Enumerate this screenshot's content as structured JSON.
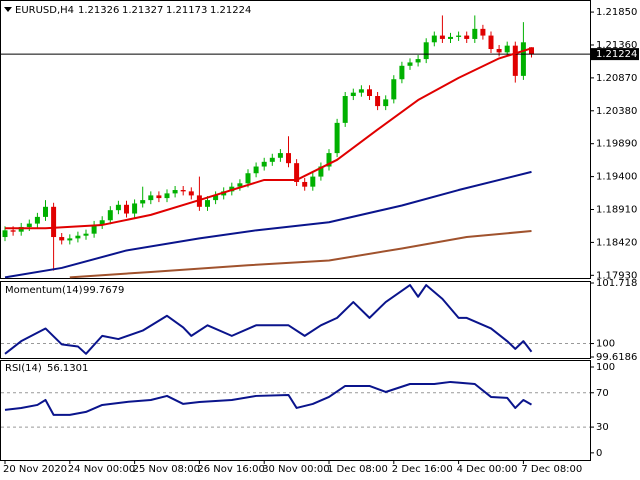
{
  "chart_data": [
    {
      "type": "candlestick",
      "title": "EURUSD,H4",
      "up_color": "#00b000",
      "down_color": "#e00000",
      "open": [
        1.185,
        1.186,
        1.1858,
        1.1865,
        1.187,
        1.188,
        1.1895,
        1.185,
        1.1845,
        1.1848,
        1.1852,
        1.1855,
        1.1868,
        1.1875,
        1.189,
        1.1898,
        1.1885,
        1.19,
        1.1905,
        1.1912,
        1.1908,
        1.1915,
        1.192,
        1.1918,
        1.1912,
        1.1895,
        1.1905,
        1.1912,
        1.1918,
        1.1925,
        1.193,
        1.1945,
        1.1955,
        1.1962,
        1.1968,
        1.1975,
        1.196,
        1.1932,
        1.1925,
        1.194,
        1.1955,
        1.1975,
        1.202,
        1.206,
        1.2065,
        1.207,
        1.206,
        1.2045,
        1.2055,
        1.2085,
        1.2105,
        1.211,
        1.2115,
        1.214,
        1.215,
        1.2145,
        1.2148,
        1.215,
        1.2145,
        1.216,
        1.215,
        1.213,
        1.2125,
        1.2135,
        1.209,
        1.21326
      ],
      "high": [
        1.1866,
        1.1866,
        1.1871,
        1.1876,
        1.1886,
        1.1905,
        1.1901,
        1.1856,
        1.1854,
        1.1858,
        1.1861,
        1.1874,
        1.1881,
        1.1896,
        1.1904,
        1.1904,
        1.1906,
        1.1925,
        1.1918,
        1.1918,
        1.1921,
        1.1926,
        1.1926,
        1.1924,
        1.194,
        1.1911,
        1.1918,
        1.1924,
        1.1931,
        1.1936,
        1.1951,
        1.1961,
        1.1968,
        1.1974,
        1.1981,
        1.2,
        1.1966,
        1.1938,
        1.1946,
        1.1961,
        1.1981,
        1.2026,
        1.2066,
        1.2071,
        1.2076,
        1.2076,
        1.2066,
        1.2061,
        1.2091,
        1.2111,
        1.2116,
        1.2121,
        1.2146,
        1.2156,
        1.218,
        1.2154,
        1.2156,
        1.2156,
        1.218,
        1.2166,
        1.2156,
        1.2136,
        1.2141,
        1.2141,
        1.217,
        1.21327
      ],
      "low": [
        1.1844,
        1.1852,
        1.1852,
        1.1859,
        1.1864,
        1.1874,
        1.18,
        1.1839,
        1.1839,
        1.1842,
        1.1846,
        1.1849,
        1.1862,
        1.1869,
        1.1884,
        1.1879,
        1.1879,
        1.1894,
        1.1899,
        1.1902,
        1.1902,
        1.1909,
        1.1912,
        1.1906,
        1.1889,
        1.1889,
        1.1899,
        1.1906,
        1.1912,
        1.1919,
        1.1924,
        1.1939,
        1.1949,
        1.1956,
        1.1962,
        1.1954,
        1.1926,
        1.1919,
        1.1919,
        1.1934,
        1.1949,
        1.1969,
        1.2014,
        1.2054,
        1.2059,
        1.2054,
        1.2039,
        1.2039,
        1.2049,
        1.2079,
        1.2099,
        1.2104,
        1.2109,
        1.2134,
        1.2139,
        1.2139,
        1.2142,
        1.2139,
        1.2139,
        1.2144,
        1.2124,
        1.2119,
        1.2119,
        1.208,
        1.2084,
        1.21173
      ],
      "close": [
        1.186,
        1.1858,
        1.1865,
        1.187,
        1.188,
        1.1895,
        1.185,
        1.1845,
        1.1848,
        1.1852,
        1.1855,
        1.1868,
        1.1875,
        1.189,
        1.1898,
        1.1885,
        1.19,
        1.1905,
        1.1912,
        1.1908,
        1.1915,
        1.192,
        1.1918,
        1.1912,
        1.1895,
        1.1905,
        1.1912,
        1.1918,
        1.1925,
        1.193,
        1.1945,
        1.1955,
        1.1962,
        1.1968,
        1.1975,
        1.196,
        1.1932,
        1.1925,
        1.194,
        1.1955,
        1.1975,
        1.202,
        1.206,
        1.2065,
        1.207,
        1.206,
        1.2045,
        1.2055,
        1.2085,
        1.2105,
        1.211,
        1.2115,
        1.214,
        1.215,
        1.2145,
        1.2148,
        1.215,
        1.2145,
        1.216,
        1.215,
        1.213,
        1.2125,
        1.2135,
        1.209,
        1.214,
        1.21224
      ],
      "series": [
        {
          "color": "#e00000",
          "x": [
            0,
            5,
            12,
            18,
            24,
            32,
            36,
            41,
            46,
            51,
            56,
            61,
            65
          ],
          "values": [
            1.1863,
            1.1863,
            1.1868,
            1.1883,
            1.1905,
            1.1935,
            1.1935,
            1.1965,
            1.201,
            1.2054,
            1.2087,
            1.2116,
            1.2131
          ]
        },
        {
          "color": "#0a148c",
          "x": [
            0,
            7,
            15,
            24,
            31,
            40,
            49,
            56,
            65
          ],
          "values": [
            1.179,
            1.1804,
            1.183,
            1.1848,
            1.186,
            1.1872,
            1.1897,
            1.192,
            1.1947
          ]
        },
        {
          "color": "#a0522d",
          "x": [
            8,
            18,
            30,
            40,
            49,
            57,
            65
          ],
          "values": [
            1.179,
            1.1798,
            1.1808,
            1.1815,
            1.1833,
            1.185,
            1.1859
          ]
        }
      ],
      "ylim": [
        1.1789,
        1.22
      ],
      "yticks": [
        {
          "value": 1.2185,
          "label": "1.21850"
        },
        {
          "value": 1.2136,
          "label": "1.21360"
        },
        {
          "value": 1.2087,
          "label": "1.20870"
        },
        {
          "value": 1.2038,
          "label": "1.20380"
        },
        {
          "value": 1.1989,
          "label": "1.19890"
        },
        {
          "value": 1.194,
          "label": "1.19400"
        },
        {
          "value": 1.1891,
          "label": "1.18910"
        },
        {
          "value": 1.1842,
          "label": "1.18420"
        },
        {
          "value": 1.1793,
          "label": "1.17930"
        }
      ],
      "xticks": [
        {
          "value": 0,
          "label": "20 Nov 2020"
        },
        {
          "value": 8,
          "label": "24 Nov 00:00"
        },
        {
          "value": 16,
          "label": "25 Nov 08:00"
        },
        {
          "value": 24,
          "label": "26 Nov 16:00"
        },
        {
          "value": 32,
          "label": "30 Nov 00:00"
        },
        {
          "value": 40,
          "label": "1 Dec 08:00"
        },
        {
          "value": 48,
          "label": "2 Dec 16:00"
        },
        {
          "value": 56,
          "label": "4 Dec 00:00"
        },
        {
          "value": 64,
          "label": "7 Dec 08:00"
        }
      ]
    },
    {
      "type": "line",
      "title": "Momentum(14)",
      "series": [
        {
          "color": "#0a148c",
          "x": [
            0,
            2,
            5,
            7,
            9,
            10,
            12,
            14,
            17,
            20,
            22,
            23,
            25,
            28,
            31,
            35,
            37,
            39,
            41,
            43,
            45,
            47,
            50,
            51,
            52,
            54,
            56,
            57,
            60,
            62,
            63,
            64,
            65
          ],
          "values": [
            99.709,
            100.068,
            100.428,
            99.978,
            99.918,
            99.709,
            100.218,
            100.128,
            100.368,
            100.788,
            100.458,
            100.218,
            100.518,
            100.218,
            100.518,
            100.518,
            100.218,
            100.518,
            100.728,
            101.178,
            100.728,
            101.178,
            101.658,
            101.328,
            101.658,
            101.268,
            100.728,
            100.728,
            100.428,
            100.068,
            99.85,
            100.068,
            99.7679
          ]
        }
      ],
      "levels": [
        100
      ],
      "ylim": [
        99.6186,
        101.718
      ],
      "yticks": [
        101.718,
        100,
        99.6186
      ]
    },
    {
      "type": "line",
      "title": "RSI(14)",
      "series": [
        {
          "color": "#0a148c",
          "x": [
            0,
            2,
            4,
            5,
            6,
            8,
            10,
            12,
            15,
            18,
            20,
            22,
            24,
            28,
            31,
            35,
            36,
            38,
            40,
            42,
            45,
            47,
            50,
            53,
            55,
            58,
            60,
            62,
            63,
            64,
            65
          ],
          "values": [
            50.0,
            52.3,
            55.8,
            61.6,
            44.2,
            44.2,
            47.7,
            55.8,
            59.3,
            61.6,
            66.3,
            57.0,
            59.3,
            61.6,
            66.3,
            67.4,
            52.3,
            57.0,
            65.1,
            77.9,
            77.9,
            70.9,
            80.2,
            80.2,
            82.6,
            80.2,
            65.1,
            64.0,
            52.3,
            61.6,
            56.1301
          ]
        }
      ],
      "levels": [
        70,
        30
      ],
      "ylim": [
        -6,
        107
      ],
      "yticks": [
        100,
        70,
        30,
        0
      ]
    }
  ]
}
